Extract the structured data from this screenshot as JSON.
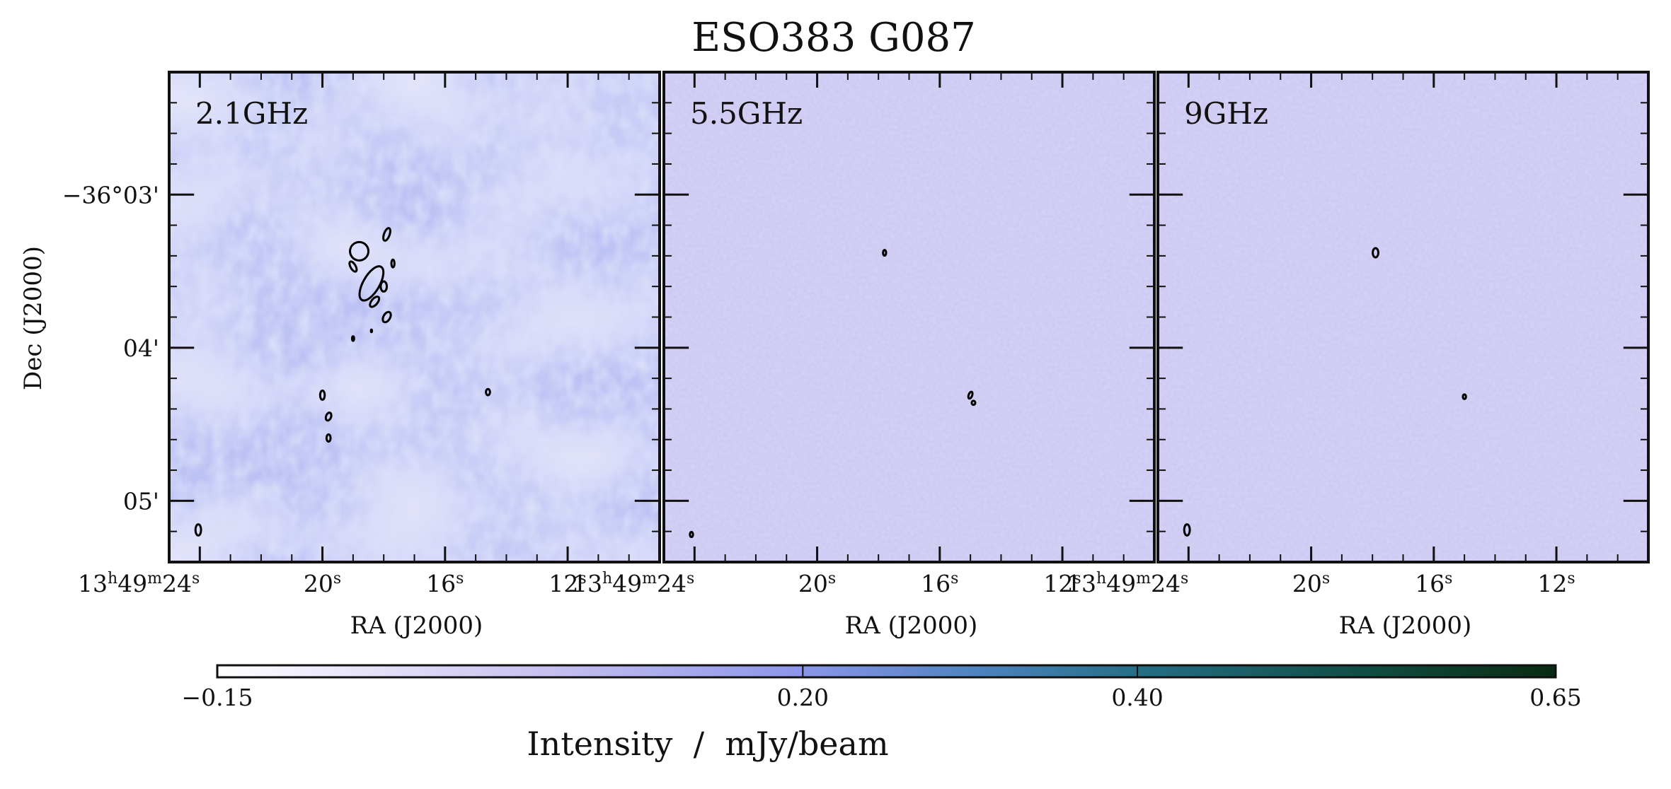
{
  "chart_data": {
    "type": "heatmap",
    "title": "ESO383 G087",
    "panels": [
      {
        "label": "2.1GHz",
        "xlabel": "RA (J2000)",
        "ylabel": "Dec (J2000)",
        "x_ticks": [
          {
            "ra_sec": 24,
            "label_h": "13",
            "label_m": "49",
            "label_s": "24"
          },
          {
            "ra_sec": 20,
            "label_s": "20"
          },
          {
            "ra_sec": 16,
            "label_s": "16"
          },
          {
            "ra_sec": 12,
            "label_s": "12"
          }
        ],
        "y_ticks": [
          {
            "dec_arcmin": 3,
            "label": "−36°03'"
          },
          {
            "dec_arcmin": 4,
            "label": "04'"
          },
          {
            "dec_arcmin": 5,
            "label": "05'"
          }
        ],
        "x_range_ra_sec": [
          25.0,
          9.0
        ],
        "y_range_dec_arcmin": [
          2.2,
          5.4
        ],
        "noise_level": "high",
        "contours": [
          {
            "ra_sec": 18.8,
            "dec_arcmin": 3.37,
            "a_arcsec": 3.6,
            "b_arcsec": 3.6,
            "angle": -30
          },
          {
            "ra_sec": 17.9,
            "dec_arcmin": 3.26,
            "a_arcsec": 1.1,
            "b_arcsec": 2.6,
            "angle": 20
          },
          {
            "ra_sec": 19.0,
            "dec_arcmin": 3.47,
            "a_arcsec": 1.0,
            "b_arcsec": 2.2,
            "angle": -30
          },
          {
            "ra_sec": 17.7,
            "dec_arcmin": 3.45,
            "a_arcsec": 0.6,
            "b_arcsec": 1.5,
            "angle": 0
          },
          {
            "ra_sec": 18.4,
            "dec_arcmin": 3.58,
            "a_arcsec": 3.2,
            "b_arcsec": 7.5,
            "angle": 30
          },
          {
            "ra_sec": 18.0,
            "dec_arcmin": 3.6,
            "a_arcsec": 1.2,
            "b_arcsec": 2.0,
            "angle": 0
          },
          {
            "ra_sec": 18.3,
            "dec_arcmin": 3.7,
            "a_arcsec": 1.2,
            "b_arcsec": 2.4,
            "angle": 40
          },
          {
            "ra_sec": 17.9,
            "dec_arcmin": 3.8,
            "a_arcsec": 1.3,
            "b_arcsec": 2.2,
            "angle": 30
          },
          {
            "ra_sec": 19.0,
            "dec_arcmin": 3.94,
            "a_arcsec": 0.4,
            "b_arcsec": 0.9,
            "angle": 0
          },
          {
            "ra_sec": 18.4,
            "dec_arcmin": 3.89,
            "a_arcsec": 0.2,
            "b_arcsec": 0.5,
            "angle": 0
          },
          {
            "ra_sec": 20.0,
            "dec_arcmin": 4.31,
            "a_arcsec": 0.9,
            "b_arcsec": 1.8,
            "angle": 0
          },
          {
            "ra_sec": 19.8,
            "dec_arcmin": 4.45,
            "a_arcsec": 1.0,
            "b_arcsec": 1.6,
            "angle": 20
          },
          {
            "ra_sec": 19.8,
            "dec_arcmin": 4.59,
            "a_arcsec": 0.8,
            "b_arcsec": 1.4,
            "angle": 0
          },
          {
            "ra_sec": 14.6,
            "dec_arcmin": 4.29,
            "a_arcsec": 0.8,
            "b_arcsec": 1.2,
            "angle": 0
          }
        ],
        "beam": {
          "ra_sec": 24.05,
          "dec_arcmin": 5.19,
          "a_arcsec": 1.1,
          "b_arcsec": 2.2,
          "angle": 0
        }
      },
      {
        "label": "5.5GHz",
        "xlabel": "RA (J2000)",
        "x_ticks": [
          {
            "ra_sec": 24,
            "label_h": "13",
            "label_m": "49",
            "label_s": "24"
          },
          {
            "ra_sec": 20,
            "label_s": "20"
          },
          {
            "ra_sec": 16,
            "label_s": "16"
          },
          {
            "ra_sec": 12,
            "label_s": "12"
          }
        ],
        "y_ticks": [
          {
            "dec_arcmin": 3
          },
          {
            "dec_arcmin": 4
          },
          {
            "dec_arcmin": 5
          }
        ],
        "x_range_ra_sec": [
          25.0,
          9.0
        ],
        "y_range_dec_arcmin": [
          2.2,
          5.4
        ],
        "noise_level": "low",
        "contours": [
          {
            "ra_sec": 17.8,
            "dec_arcmin": 3.38,
            "a_arcsec": 0.6,
            "b_arcsec": 1.1,
            "angle": 0
          },
          {
            "ra_sec": 15.0,
            "dec_arcmin": 4.31,
            "a_arcsec": 0.7,
            "b_arcsec": 1.4,
            "angle": 20
          },
          {
            "ra_sec": 14.9,
            "dec_arcmin": 4.36,
            "a_arcsec": 0.7,
            "b_arcsec": 0.8,
            "angle": 0
          }
        ],
        "beam": {
          "ra_sec": 24.1,
          "dec_arcmin": 5.22,
          "a_arcsec": 0.6,
          "b_arcsec": 1.0,
          "angle": 0
        }
      },
      {
        "label": "9GHz",
        "xlabel": "RA (J2000)",
        "x_ticks": [
          {
            "ra_sec": 24,
            "label_h": "13",
            "label_m": "49",
            "label_s": "24"
          },
          {
            "ra_sec": 20,
            "label_s": "20"
          },
          {
            "ra_sec": 16,
            "label_s": "16"
          },
          {
            "ra_sec": 12,
            "label_s": "12"
          }
        ],
        "y_ticks": [
          {
            "dec_arcmin": 3
          },
          {
            "dec_arcmin": 4
          },
          {
            "dec_arcmin": 5
          }
        ],
        "x_range_ra_sec": [
          25.0,
          9.0
        ],
        "y_range_dec_arcmin": [
          2.2,
          5.4
        ],
        "noise_level": "low",
        "contours": [
          {
            "ra_sec": 17.9,
            "dec_arcmin": 3.38,
            "a_arcsec": 1.1,
            "b_arcsec": 1.8,
            "angle": 0
          },
          {
            "ra_sec": 15.0,
            "dec_arcmin": 4.32,
            "a_arcsec": 0.6,
            "b_arcsec": 0.9,
            "angle": 0
          }
        ],
        "beam": {
          "ra_sec": 24.05,
          "dec_arcmin": 5.19,
          "a_arcsec": 1.1,
          "b_arcsec": 2.2,
          "angle": 0
        }
      }
    ],
    "colorbar": {
      "label": "Intensity  /  mJy/beam",
      "range": [
        -0.15,
        0.65
      ],
      "ticks": [
        {
          "value": -0.15,
          "label": "−0.15"
        },
        {
          "value": 0.2,
          "label": "0.20"
        },
        {
          "value": 0.4,
          "label": "0.40"
        },
        {
          "value": 0.65,
          "label": "0.65"
        }
      ],
      "colormap_stops": [
        {
          "value": -0.15,
          "color": "#ffffff"
        },
        {
          "value": 0.05,
          "color": "#c6bff0"
        },
        {
          "value": 0.2,
          "color": "#8b95ea"
        },
        {
          "value": 0.3,
          "color": "#4f84c2"
        },
        {
          "value": 0.4,
          "color": "#246f87"
        },
        {
          "value": 0.55,
          "color": "#0e4a3c"
        },
        {
          "value": 0.65,
          "color": "#0a2a12"
        }
      ]
    },
    "colors": {
      "contour": "#000000",
      "panel_low_noise_base": "#cdc9f2",
      "panel_high_noise_base": "#bdc2f4",
      "panel_high_noise_dark": "#a9b4f0",
      "panel_high_noise_light": "#e6e2f8"
    }
  }
}
